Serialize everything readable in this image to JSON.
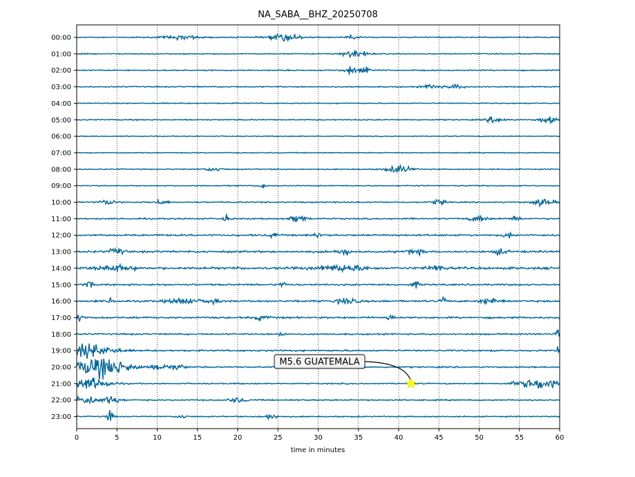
{
  "chart_data": {
    "type": "line",
    "title": "NA_SABA__BHZ_20250708",
    "xlabel": "time in minutes",
    "ylabel": "",
    "xlim": [
      0,
      60
    ],
    "x_ticks": [
      0,
      5,
      10,
      15,
      20,
      25,
      30,
      35,
      40,
      45,
      50,
      55,
      60
    ],
    "grid": "vertical-dotted",
    "trace_color": "#00669a",
    "rows": [
      {
        "label": "00:00",
        "noise": 0.5,
        "bursts": [
          {
            "t": 26,
            "w": 2,
            "a": 2.2
          },
          {
            "t": 34.2,
            "w": 0.6,
            "a": 2.5
          },
          {
            "t": 13,
            "w": 2,
            "a": 1.3
          }
        ]
      },
      {
        "label": "01:00",
        "noise": 0.45,
        "bursts": [
          {
            "t": 34.5,
            "w": 1.5,
            "a": 2.3
          }
        ]
      },
      {
        "label": "02:00",
        "noise": 0.5,
        "bursts": [
          {
            "t": 34,
            "w": 0.8,
            "a": 2.5
          },
          {
            "t": 35.8,
            "w": 0.8,
            "a": 2.2
          }
        ]
      },
      {
        "label": "03:00",
        "noise": 0.5,
        "bursts": [
          {
            "t": 44,
            "w": 1,
            "a": 1.5
          },
          {
            "t": 47,
            "w": 1,
            "a": 1.4
          }
        ]
      },
      {
        "label": "04:00",
        "noise": 0.45,
        "bursts": []
      },
      {
        "label": "05:00",
        "noise": 0.5,
        "bursts": [
          {
            "t": 52,
            "w": 1,
            "a": 2
          },
          {
            "t": 58.5,
            "w": 1,
            "a": 2.2
          }
        ]
      },
      {
        "label": "06:00",
        "noise": 0.4,
        "bursts": []
      },
      {
        "label": "07:00",
        "noise": 0.4,
        "bursts": []
      },
      {
        "label": "08:00",
        "noise": 0.45,
        "bursts": [
          {
            "t": 17,
            "w": 1,
            "a": 1.4
          },
          {
            "t": 40,
            "w": 1.5,
            "a": 2.4
          }
        ]
      },
      {
        "label": "09:00",
        "noise": 0.45,
        "bursts": [
          {
            "t": 23,
            "w": 0.5,
            "a": 1.4
          }
        ]
      },
      {
        "label": "10:00",
        "noise": 0.55,
        "bursts": [
          {
            "t": 4,
            "w": 1,
            "a": 1.6
          },
          {
            "t": 10.5,
            "w": 0.8,
            "a": 1.5
          },
          {
            "t": 45,
            "w": 0.8,
            "a": 1.6
          },
          {
            "t": 58,
            "w": 1.2,
            "a": 2.3
          }
        ]
      },
      {
        "label": "11:00",
        "noise": 0.65,
        "bursts": [
          {
            "t": 18.5,
            "w": 0.5,
            "a": 2
          },
          {
            "t": 27.5,
            "w": 1,
            "a": 2
          },
          {
            "t": 50,
            "w": 1.2,
            "a": 1.8
          },
          {
            "t": 54.5,
            "w": 0.5,
            "a": 2
          }
        ]
      },
      {
        "label": "12:00",
        "noise": 0.8,
        "bursts": [
          {
            "t": 24.5,
            "w": 0.4,
            "a": 2
          },
          {
            "t": 30,
            "w": 0.5,
            "a": 2.2
          },
          {
            "t": 53.5,
            "w": 0.5,
            "a": 2.2
          }
        ]
      },
      {
        "label": "13:00",
        "noise": 0.85,
        "bursts": [
          {
            "t": 5,
            "w": 1,
            "a": 1.8
          },
          {
            "t": 33,
            "w": 1,
            "a": 2
          },
          {
            "t": 42,
            "w": 1,
            "a": 1.8
          },
          {
            "t": 52.5,
            "w": 0.8,
            "a": 1.8
          }
        ]
      },
      {
        "label": "14:00",
        "noise": 1.05,
        "bursts": [
          {
            "t": 5,
            "w": 2,
            "a": 1.8
          },
          {
            "t": 33,
            "w": 3,
            "a": 1.9
          },
          {
            "t": 44.5,
            "w": 0.8,
            "a": 2.3
          }
        ]
      },
      {
        "label": "15:00",
        "noise": 0.75,
        "bursts": [
          {
            "t": 1.5,
            "w": 0.5,
            "a": 2
          },
          {
            "t": 25.5,
            "w": 0.5,
            "a": 1.8
          },
          {
            "t": 42,
            "w": 0.6,
            "a": 1.6
          }
        ]
      },
      {
        "label": "16:00",
        "noise": 0.85,
        "bursts": [
          {
            "t": 4.3,
            "w": 0.4,
            "a": 2.2
          },
          {
            "t": 13,
            "w": 1.5,
            "a": 2
          },
          {
            "t": 16.5,
            "w": 1,
            "a": 1.6
          },
          {
            "t": 33.5,
            "w": 1.2,
            "a": 1.9
          },
          {
            "t": 45.5,
            "w": 0.3,
            "a": 2.5
          },
          {
            "t": 51.5,
            "w": 1.2,
            "a": 2
          }
        ]
      },
      {
        "label": "17:00",
        "noise": 0.8,
        "bursts": [
          {
            "t": 0.5,
            "w": 0.5,
            "a": 1.8
          },
          {
            "t": 23,
            "w": 0.8,
            "a": 1.5
          },
          {
            "t": 39,
            "w": 0.5,
            "a": 1.5
          }
        ]
      },
      {
        "label": "18:00",
        "noise": 0.65,
        "bursts": [
          {
            "t": 25.5,
            "w": 0.3,
            "a": 3.5
          },
          {
            "t": 59.7,
            "w": 0.3,
            "a": 3
          }
        ]
      },
      {
        "label": "19:00",
        "noise": 0.7,
        "bursts": [
          {
            "t": 1.5,
            "w": 3,
            "a": 4
          },
          {
            "t": 59.8,
            "w": 0.3,
            "a": 3
          }
        ]
      },
      {
        "label": "20:00",
        "noise": 0.6,
        "bursts": [
          {
            "t": 3,
            "w": 3.5,
            "a": 6
          },
          {
            "t": 10.5,
            "w": 1,
            "a": 1.8
          },
          {
            "t": 12.5,
            "w": 1,
            "a": 1.6
          }
        ]
      },
      {
        "label": "21:00",
        "noise": 0.55,
        "bursts": [
          {
            "t": 1.5,
            "w": 2.5,
            "a": 3.5
          },
          {
            "t": 57.5,
            "w": 2.8,
            "a": 3.2
          }
        ]
      },
      {
        "label": "22:00",
        "noise": 0.55,
        "bursts": [
          {
            "t": 1,
            "w": 2,
            "a": 2.5
          },
          {
            "t": 4.5,
            "w": 1,
            "a": 2.2
          },
          {
            "t": 20,
            "w": 1.2,
            "a": 1.4
          }
        ]
      },
      {
        "label": "23:00",
        "noise": 0.5,
        "bursts": [
          {
            "t": 4.2,
            "w": 0.4,
            "a": 4
          },
          {
            "t": 13,
            "w": 0.5,
            "a": 1.6
          },
          {
            "t": 24,
            "w": 1,
            "a": 1.5
          }
        ]
      }
    ],
    "annotations": [
      {
        "text": "M5.6 GUATEMALA",
        "row": "21:00",
        "t": 41.5,
        "marker": "star",
        "marker_color": "#ffff00"
      }
    ]
  }
}
